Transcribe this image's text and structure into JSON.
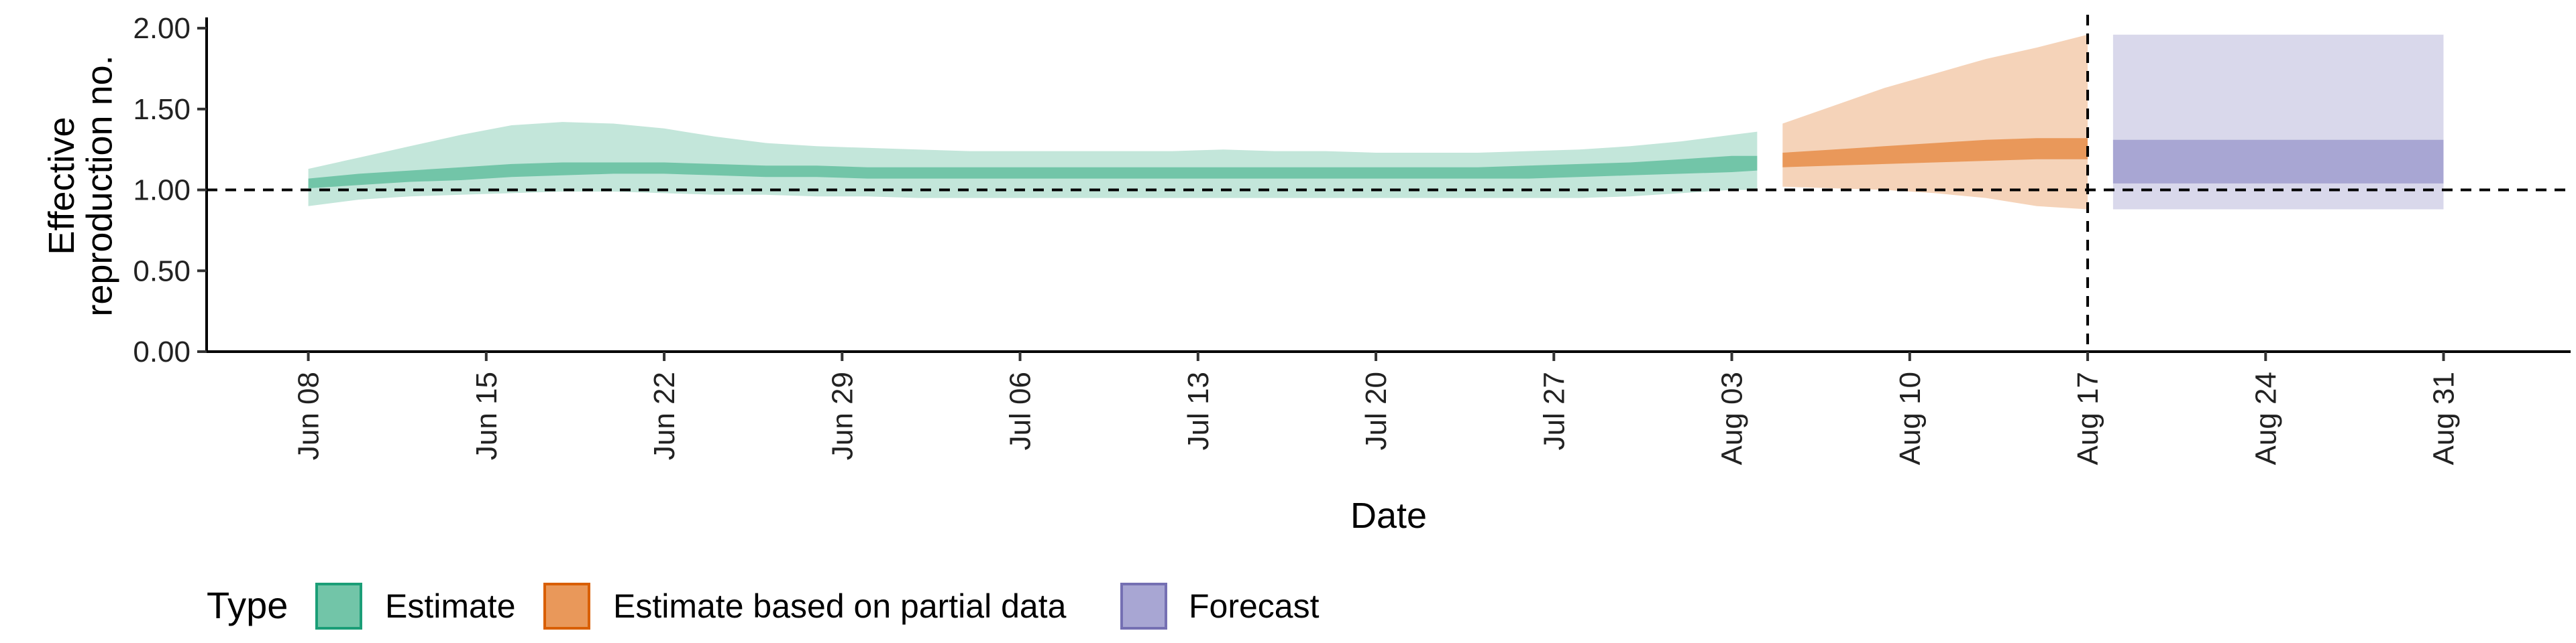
{
  "chart_data": {
    "type": "area",
    "ylabel_lines": [
      "Effective",
      "reproduction no."
    ],
    "xlabel": "Date",
    "ylim": [
      0,
      2.05
    ],
    "y_ticks": [
      {
        "value": 0.0,
        "label": "0.00"
      },
      {
        "value": 0.5,
        "label": "0.50"
      },
      {
        "value": 1.0,
        "label": "1.00"
      },
      {
        "value": 1.5,
        "label": "1.50"
      },
      {
        "value": 2.0,
        "label": "2.00"
      }
    ],
    "x_ticks": [
      {
        "date": "2020-06-08",
        "label": "Jun 08"
      },
      {
        "date": "2020-06-15",
        "label": "Jun 15"
      },
      {
        "date": "2020-06-22",
        "label": "Jun 22"
      },
      {
        "date": "2020-06-29",
        "label": "Jun 29"
      },
      {
        "date": "2020-07-06",
        "label": "Jul 06"
      },
      {
        "date": "2020-07-13",
        "label": "Jul 13"
      },
      {
        "date": "2020-07-20",
        "label": "Jul 20"
      },
      {
        "date": "2020-07-27",
        "label": "Jul 27"
      },
      {
        "date": "2020-08-03",
        "label": "Aug 03"
      },
      {
        "date": "2020-08-10",
        "label": "Aug 10"
      },
      {
        "date": "2020-08-17",
        "label": "Aug 17"
      },
      {
        "date": "2020-08-24",
        "label": "Aug 24"
      },
      {
        "date": "2020-08-31",
        "label": "Aug 31"
      }
    ],
    "x_range": [
      "2020-06-04",
      "2020-09-05"
    ],
    "reference_line_y": 1.0,
    "reference_line_x": "2020-08-17",
    "legend": {
      "title": "Type",
      "position": "bottom",
      "entries": [
        {
          "label": "Estimate",
          "fill": "#72c5a8",
          "stroke": "#1b9e77"
        },
        {
          "label": "Estimate based on partial data",
          "fill": "#e9985a",
          "stroke": "#d95f02"
        },
        {
          "label": "Forecast",
          "fill": "#a8a6d3",
          "stroke": "#7570b3"
        }
      ]
    },
    "series": [
      {
        "name": "Estimate",
        "outer_color": "#c3e6da",
        "inner_color": "#72c5a8",
        "x": [
          "2020-06-08",
          "2020-06-10",
          "2020-06-12",
          "2020-06-14",
          "2020-06-16",
          "2020-06-18",
          "2020-06-20",
          "2020-06-22",
          "2020-06-24",
          "2020-06-26",
          "2020-06-28",
          "2020-06-30",
          "2020-07-02",
          "2020-07-04",
          "2020-07-06",
          "2020-07-08",
          "2020-07-10",
          "2020-07-12",
          "2020-07-14",
          "2020-07-16",
          "2020-07-18",
          "2020-07-20",
          "2020-07-22",
          "2020-07-24",
          "2020-07-26",
          "2020-07-28",
          "2020-07-30",
          "2020-08-01",
          "2020-08-03",
          "2020-08-04"
        ],
        "outer_lower": [
          0.9,
          0.94,
          0.96,
          0.97,
          0.98,
          0.99,
          0.99,
          0.98,
          0.97,
          0.97,
          0.96,
          0.96,
          0.95,
          0.95,
          0.95,
          0.95,
          0.95,
          0.95,
          0.95,
          0.95,
          0.95,
          0.95,
          0.95,
          0.95,
          0.95,
          0.95,
          0.96,
          0.98,
          1.0,
          1.0
        ],
        "outer_upper": [
          1.13,
          1.2,
          1.27,
          1.34,
          1.4,
          1.42,
          1.41,
          1.38,
          1.33,
          1.29,
          1.27,
          1.26,
          1.25,
          1.24,
          1.24,
          1.24,
          1.24,
          1.24,
          1.25,
          1.24,
          1.24,
          1.23,
          1.23,
          1.23,
          1.24,
          1.25,
          1.27,
          1.3,
          1.34,
          1.36
        ],
        "inner_lower": [
          1.01,
          1.03,
          1.05,
          1.06,
          1.08,
          1.09,
          1.1,
          1.1,
          1.09,
          1.08,
          1.08,
          1.07,
          1.07,
          1.07,
          1.07,
          1.07,
          1.07,
          1.07,
          1.07,
          1.07,
          1.07,
          1.07,
          1.07,
          1.07,
          1.07,
          1.08,
          1.09,
          1.1,
          1.11,
          1.12
        ],
        "inner_upper": [
          1.07,
          1.1,
          1.12,
          1.14,
          1.16,
          1.17,
          1.17,
          1.17,
          1.16,
          1.15,
          1.15,
          1.14,
          1.14,
          1.14,
          1.14,
          1.14,
          1.14,
          1.14,
          1.14,
          1.14,
          1.14,
          1.14,
          1.14,
          1.14,
          1.15,
          1.16,
          1.17,
          1.19,
          1.21,
          1.21
        ]
      },
      {
        "name": "Estimate based on partial data",
        "outer_color": "#f5d3b9",
        "inner_color": "#e9985a",
        "x": [
          "2020-08-05",
          "2020-08-07",
          "2020-08-09",
          "2020-08-11",
          "2020-08-13",
          "2020-08-15",
          "2020-08-17"
        ],
        "outer_lower": [
          1.02,
          1.01,
          1.0,
          0.98,
          0.95,
          0.9,
          0.88
        ],
        "outer_upper": [
          1.41,
          1.52,
          1.63,
          1.72,
          1.81,
          1.88,
          1.96
        ],
        "inner_lower": [
          1.14,
          1.15,
          1.16,
          1.17,
          1.18,
          1.19,
          1.19
        ],
        "inner_upper": [
          1.23,
          1.25,
          1.27,
          1.29,
          1.31,
          1.32,
          1.32
        ]
      },
      {
        "name": "Forecast",
        "outer_color": "#d9d8eb",
        "inner_color": "#a8a6d3",
        "x": [
          "2020-08-18",
          "2020-08-31"
        ],
        "outer_lower": [
          0.88,
          0.88
        ],
        "outer_upper": [
          1.96,
          1.96
        ],
        "inner_lower": [
          1.04,
          1.04
        ],
        "inner_upper": [
          1.31,
          1.31
        ]
      }
    ]
  }
}
